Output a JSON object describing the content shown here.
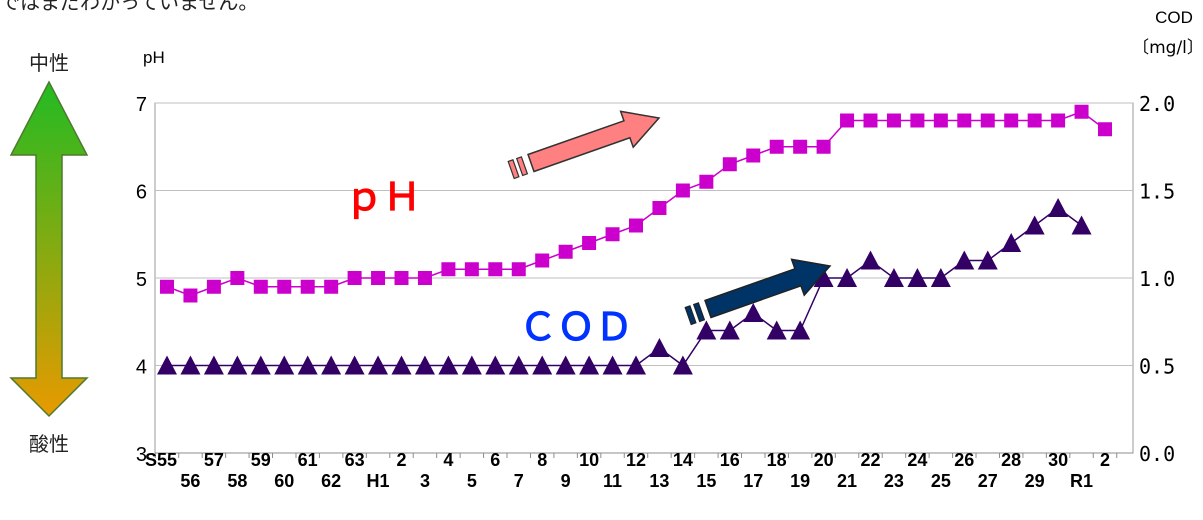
{
  "top_caption": "ではまだわかっていません。",
  "arrow_labels": {
    "top": "中性",
    "bottom": "酸性"
  },
  "colors": {
    "ph": "#CC00CC",
    "cod": "#330066",
    "ph_label": "#FF0000",
    "cod_label": "#0033FF",
    "pink_arrow": "#FF8080",
    "navy_arrow": "#003366",
    "arrow_top": "#22BB22",
    "arrow_bottom": "#E89A00",
    "grid": "#BFBFBF"
  },
  "chart_data": {
    "type": "line",
    "left_axis": {
      "label": "pH",
      "range": [
        3,
        7
      ],
      "ticks": [
        "3",
        "4",
        "5",
        "6",
        "7"
      ]
    },
    "right_axis": {
      "label_line1": "COD",
      "label_line2": "〔mg/l〕",
      "range": [
        0.0,
        2.0
      ],
      "ticks": [
        "0.0",
        "0.5",
        "1.0",
        "1.5",
        "2.0"
      ]
    },
    "grid": "horizontal",
    "x_labels_top": [
      "S55",
      "57",
      "59",
      "61",
      "63",
      "2",
      "4",
      "6",
      "8",
      "10",
      "12",
      "14",
      "16",
      "18",
      "20",
      "22",
      "24",
      "26",
      "28",
      "30",
      "2"
    ],
    "x_labels_bottom": [
      "56",
      "58",
      "60",
      "62",
      "H1",
      "3",
      "5",
      "7",
      "9",
      "11",
      "13",
      "15",
      "17",
      "19",
      "21",
      "23",
      "25",
      "27",
      "29",
      "R1"
    ],
    "series": [
      {
        "name": "ｐＨ",
        "axis": "left",
        "marker": "square",
        "values": [
          4.9,
          4.8,
          4.9,
          5.0,
          4.9,
          4.9,
          4.9,
          4.9,
          5.0,
          5.0,
          5.0,
          5.0,
          5.1,
          5.1,
          5.1,
          5.1,
          5.2,
          5.3,
          5.4,
          5.5,
          5.6,
          5.8,
          6.0,
          6.1,
          6.3,
          6.4,
          6.5,
          6.5,
          6.5,
          6.8,
          6.8,
          6.8,
          6.8,
          6.8,
          6.8,
          6.8,
          6.8,
          6.8,
          6.8,
          6.9,
          6.7
        ]
      },
      {
        "name": "ＣＯＤ",
        "axis": "right",
        "marker": "triangle",
        "values": [
          0.5,
          0.5,
          0.5,
          0.5,
          0.5,
          0.5,
          0.5,
          0.5,
          0.5,
          0.5,
          0.5,
          0.5,
          0.5,
          0.5,
          0.5,
          0.5,
          0.5,
          0.5,
          0.5,
          0.5,
          0.5,
          0.6,
          0.5,
          0.7,
          0.7,
          0.8,
          0.7,
          0.7,
          1.0,
          1.0,
          1.1,
          1.0,
          1.0,
          1.0,
          1.1,
          1.1,
          1.2,
          1.3,
          1.4,
          1.3
        ]
      }
    ]
  }
}
